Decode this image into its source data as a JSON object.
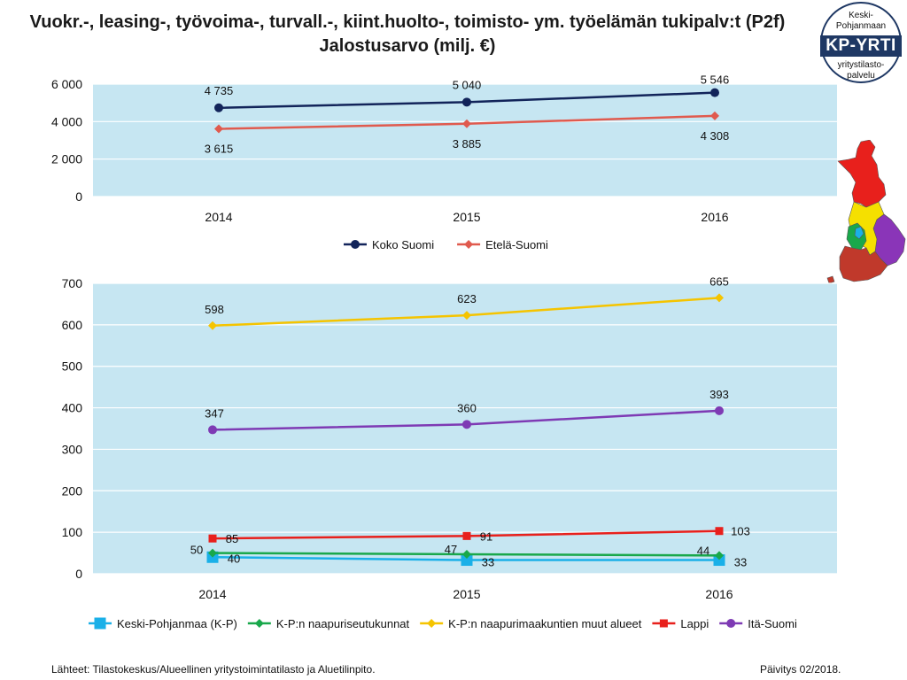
{
  "title": {
    "line1": "Vuokr.-, leasing-, työvoima-, turvall.-, kiint.huolto-, toimisto- ym. työelämän tukipalv:t (P2f)",
    "line2": "Jalostusarvo (milj. €)"
  },
  "logo": {
    "top_line1": "Keski-",
    "top_line2": "Pohjanmaan",
    "middle": "KP-YRTI",
    "bottom_line1": "yritystilasto-",
    "bottom_line2": "palvelu"
  },
  "colors": {
    "plot_background": "#c6e6f2",
    "gridline": "#ffffff",
    "koko_suomi": "#12245a",
    "etela_suomi": "#e05a4e",
    "keski_pohjanmaa": "#1ab0e8",
    "naapuriseutukunnat": "#19a84b",
    "naapurimaakuntien_muut": "#f5c400",
    "lappi": "#e8201c",
    "ita_suomi": "#7e3ab4",
    "map_lappi": "#e8201c",
    "map_ita_suomi": "#8a35b8",
    "map_naapurimaakunnat": "#f5e000",
    "map_naapuriseutukunnat": "#19a84b",
    "map_keski_pohjanmaa": "#1ab0e8",
    "map_etela_suomi": "#c0392b"
  },
  "map_icon": "finland-regions-map-icon",
  "chart_data": [
    {
      "type": "line",
      "categories": [
        "2014",
        "2015",
        "2016"
      ],
      "series": [
        {
          "name": "Koko Suomi",
          "values": [
            4735,
            5040,
            5546
          ],
          "labels": [
            "4 735",
            "5 040",
            "5 546"
          ],
          "color_key": "koko_suomi",
          "marker": "circle"
        },
        {
          "name": "Etelä-Suomi",
          "values": [
            3615,
            3885,
            4308
          ],
          "labels": [
            "3 615",
            "3 885",
            "4 308"
          ],
          "color_key": "etela_suomi",
          "marker": "diamond"
        }
      ],
      "ylim": [
        0,
        6000
      ],
      "yticks": [
        0,
        2000,
        4000,
        6000
      ],
      "ytick_labels": [
        "0",
        "2 000",
        "4 000",
        "6 000"
      ],
      "grid": true,
      "legend_position": "bottom"
    },
    {
      "type": "line",
      "categories": [
        "2014",
        "2015",
        "2016"
      ],
      "series": [
        {
          "name": "Keski-Pohjanmaa (K-P)",
          "values": [
            40,
            33,
            33
          ],
          "labels": [
            "40",
            "33",
            "33"
          ],
          "color_key": "keski_pohjanmaa",
          "marker": "square-large"
        },
        {
          "name": "K-P:n naapuriseutukunnat",
          "values": [
            50,
            47,
            44
          ],
          "labels": [
            "50",
            "47",
            "44"
          ],
          "color_key": "naapuriseutukunnat",
          "marker": "diamond"
        },
        {
          "name": "K-P:n naapurimaakuntien muut alueet",
          "values": [
            598,
            623,
            665
          ],
          "labels": [
            "598",
            "623",
            "665"
          ],
          "color_key": "naapurimaakuntien_muut",
          "marker": "diamond"
        },
        {
          "name": "Lappi",
          "values": [
            85,
            91,
            103
          ],
          "labels": [
            "85",
            "91",
            "103"
          ],
          "color_key": "lappi",
          "marker": "square"
        },
        {
          "name": "Itä-Suomi",
          "values": [
            347,
            360,
            393
          ],
          "labels": [
            "347",
            "360",
            "393"
          ],
          "color_key": "ita_suomi",
          "marker": "circle"
        }
      ],
      "ylim": [
        0,
        700
      ],
      "yticks": [
        0,
        100,
        200,
        300,
        400,
        500,
        600,
        700
      ],
      "ytick_labels": [
        "0",
        "100",
        "200",
        "300",
        "400",
        "500",
        "600",
        "700"
      ],
      "grid": true,
      "legend_position": "bottom"
    }
  ],
  "footer": {
    "source": "Lähteet: Tilastokeskus/Alueellinen yritystoimintatilasto ja Aluetilinpito.",
    "update": "Päivitys 02/2018."
  }
}
